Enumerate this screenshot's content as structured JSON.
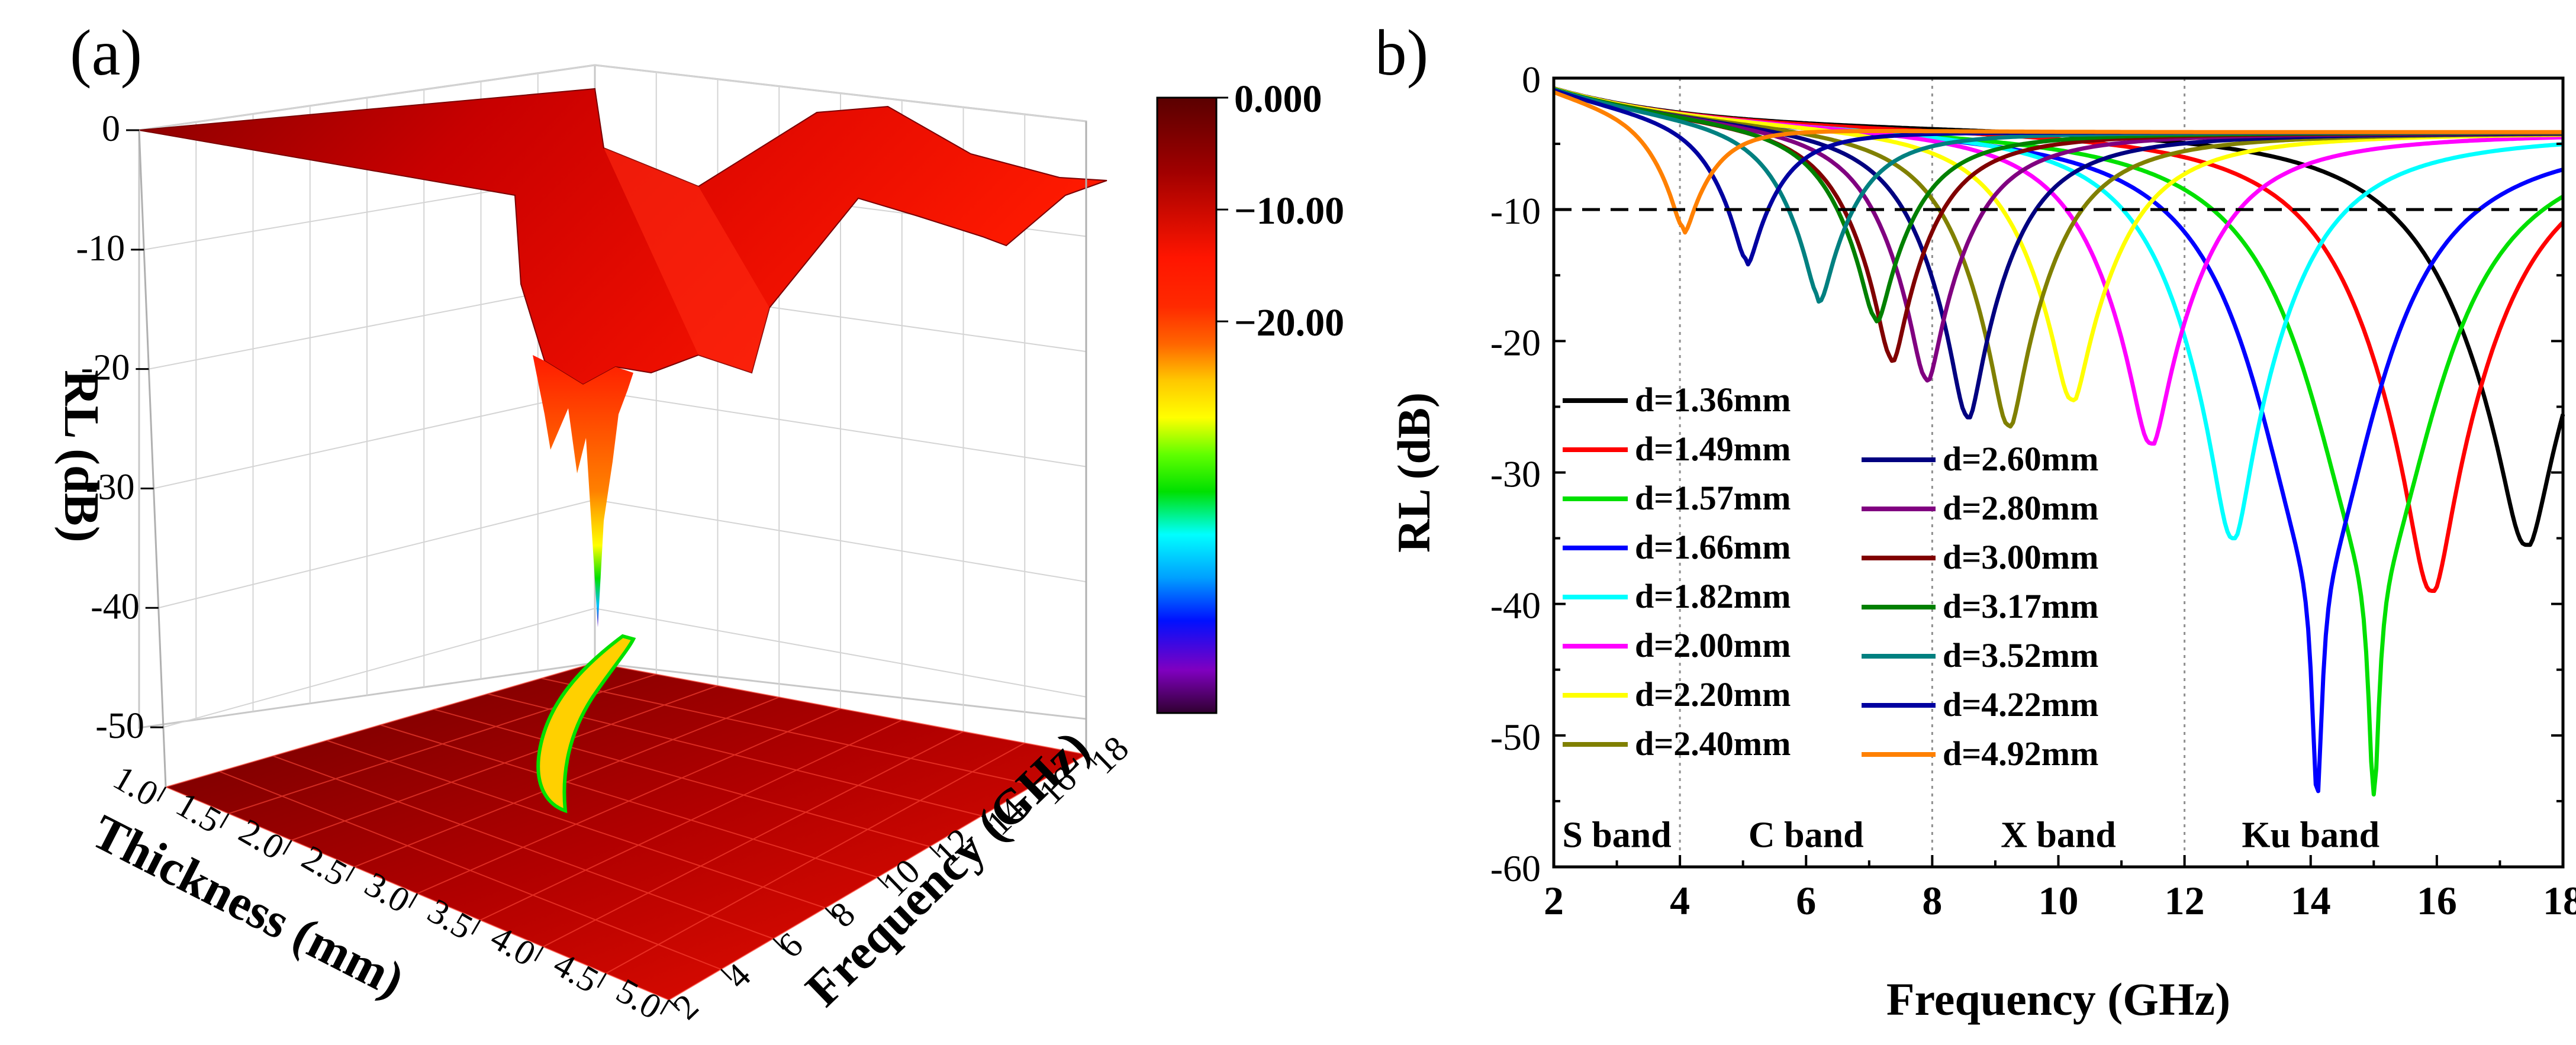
{
  "panel_a": {
    "label": "(a)",
    "z_label": "RL (dB)",
    "thickness_label": "Thickness (mm)",
    "frequency_label": "Frequency (GHz)",
    "z_ticks": [
      "0",
      "-10",
      "-20",
      "-30",
      "-40",
      "-50"
    ],
    "thickness_ticks": [
      "1.0",
      "1.5",
      "2.0",
      "2.5",
      "3.0",
      "3.5",
      "4.0",
      "4.5",
      "5.0"
    ],
    "frequency_ticks": [
      "2",
      "4",
      "6",
      "8",
      "10",
      "12",
      "14",
      "16",
      "18"
    ],
    "colorbar_labels": [
      "0.000",
      "−10.00",
      "−20.00"
    ],
    "colormap": [
      "#5a0000",
      "#b00000",
      "#ff1a00",
      "#ff6000",
      "#ffd000",
      "#ffff00",
      "#60ff00",
      "#00e000",
      "#00ffff",
      "#00a0ff",
      "#0000ff",
      "#8000c0",
      "#400040"
    ]
  },
  "panel_b": {
    "label": "(b)",
    "band_labels": [
      "S band",
      "C band",
      "X band",
      "Ku band"
    ],
    "legend_col1": [
      "d=1.36mm",
      "d=1.49mm",
      "d=1.57mm",
      "d=1.66mm",
      "d=1.82mm",
      "d=2.00mm",
      "d=2.20mm",
      "d=2.40mm"
    ],
    "legend_col2": [
      "d=2.60mm",
      "d=2.80mm",
      "d=3.00mm",
      "d=3.17mm",
      "d=3.52mm",
      "d=4.22mm",
      "d=4.92mm"
    ]
  },
  "chart_data": [
    {
      "type": "surface",
      "panel": "(a)",
      "zlabel": "RL (dB)",
      "xlabel": "Thickness (mm)",
      "ylabel": "Frequency (GHz)",
      "xlim": [
        1.0,
        5.0
      ],
      "ylim": [
        2,
        18
      ],
      "zlim": [
        -55,
        0
      ],
      "colorbar": {
        "min": -55,
        "max": 0,
        "labels": [
          "0.000",
          "−10.00",
          "−20.00"
        ]
      }
    },
    {
      "type": "line",
      "panel": "(b)",
      "xlabel": "Frequency (GHz)",
      "ylabel": "RL (dB)",
      "xlim": [
        2,
        18
      ],
      "ylim": [
        -60,
        0
      ],
      "x_ticks": [
        2,
        4,
        6,
        8,
        10,
        12,
        14,
        16,
        18
      ],
      "y_ticks": [
        0,
        -10,
        -20,
        -30,
        -40,
        -50,
        -60
      ],
      "reference_line": -10,
      "band_boundaries": [
        4,
        8,
        12
      ],
      "series": [
        {
          "name": "d=1.36mm",
          "color": "#000000",
          "peak_freq": 17.4,
          "peak_rl": -35.5
        },
        {
          "name": "d=1.49mm",
          "color": "#ff0000",
          "peak_freq": 15.9,
          "peak_rl": -39.0
        },
        {
          "name": "d=1.57mm",
          "color": "#00e000",
          "peak_freq": 15.0,
          "peak_rl": -54.5
        },
        {
          "name": "d=1.66mm",
          "color": "#0000ff",
          "peak_freq": 14.1,
          "peak_rl": -54.5
        },
        {
          "name": "d=1.82mm",
          "color": "#00ffff",
          "peak_freq": 12.75,
          "peak_rl": -35.0
        },
        {
          "name": "d=2.00mm",
          "color": "#ff00ff",
          "peak_freq": 11.45,
          "peak_rl": -27.8
        },
        {
          "name": "d=2.20mm",
          "color": "#ffff00",
          "peak_freq": 10.2,
          "peak_rl": -24.5
        },
        {
          "name": "d=2.40mm",
          "color": "#808000",
          "peak_freq": 9.2,
          "peak_rl": -26.5
        },
        {
          "name": "d=2.60mm",
          "color": "#000080",
          "peak_freq": 8.55,
          "peak_rl": -25.8
        },
        {
          "name": "d=2.80mm",
          "color": "#800080",
          "peak_freq": 7.9,
          "peak_rl": -23.0
        },
        {
          "name": "d=3.00mm",
          "color": "#800000",
          "peak_freq": 7.35,
          "peak_rl": -21.5
        },
        {
          "name": "d=3.17mm",
          "color": "#008000",
          "peak_freq": 7.1,
          "peak_rl": -18.5
        },
        {
          "name": "d=3.52mm",
          "color": "#008080",
          "peak_freq": 6.2,
          "peak_rl": -17.0
        },
        {
          "name": "d=4.22mm",
          "color": "#0000a0",
          "peak_freq": 5.05,
          "peak_rl": -14.5
        },
        {
          "name": "d=4.92mm",
          "color": "#ff8000",
          "peak_freq": 4.05,
          "peak_rl": -12.5
        }
      ]
    }
  ]
}
